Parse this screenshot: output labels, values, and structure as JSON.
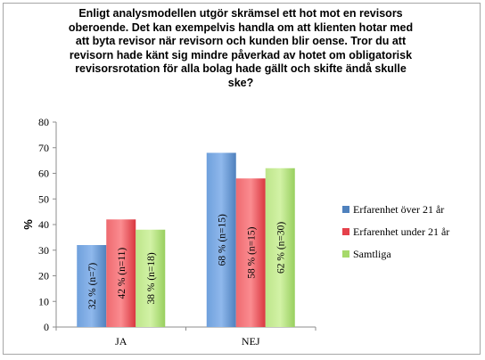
{
  "chart_data": {
    "type": "bar",
    "title": "Enligt analysmodellen utgör skrämsel ett hot mot en revisors oberoende. Det kan exempelvis handla om att klienten hotar med att byta revisor när revisorn och kunden blir oense. Tror du att revisorn hade känt sig mindre påverkad av hotet om obligatorisk revisorsrotation för alla bolag hade gällt och skifte ändå skulle ske?",
    "title_lines": [
      "Enligt analysmodellen utgör skrämsel ett hot mot en revisors",
      "oberoende. Det kan exempelvis handla om att klienten hotar med",
      "att byta revisor när revisorn och kunden blir oense. Tror du att",
      "revisorn hade känt sig mindre påverkad av hotet om obligatorisk",
      "revisorsrotation för alla bolag hade gällt och skifte ändå skulle",
      "ske?"
    ],
    "xlabel": "",
    "ylabel": "%",
    "ylim": [
      0,
      80
    ],
    "yticks": [
      "0",
      "10",
      "20",
      "30",
      "40",
      "50",
      "60",
      "70",
      "80"
    ],
    "categories": [
      "JA",
      "NEJ"
    ],
    "grid": false,
    "legend_position": "right",
    "series": [
      {
        "name": "Erfarenhet över 21 år",
        "color": "#4f81bd",
        "values": [
          32,
          68
        ],
        "labels": [
          "32 % (n=7)",
          "68 % (n=15)"
        ]
      },
      {
        "name": "Erfarenhet under 21 år",
        "color": "#e5414b",
        "values": [
          42,
          58
        ],
        "labels": [
          "42 % (n=11)",
          "58 % (n=15)"
        ]
      },
      {
        "name": "Samtliga",
        "color": "#a6d96a",
        "values": [
          38,
          62
        ],
        "labels": [
          "38 % (n=18)",
          "62 % (n=30)"
        ]
      }
    ]
  }
}
